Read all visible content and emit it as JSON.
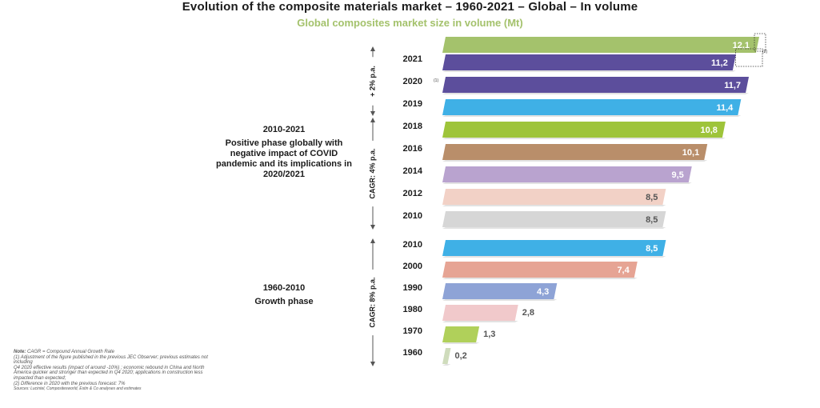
{
  "chart_data": {
    "type": "bar",
    "orientation": "horizontal",
    "title": "Evolution of the composite materials market – 1960-2021 – Global – In volume",
    "subtitle": "Global composites market size in volume (Mt)",
    "unit": "Mt",
    "xlim": [
      0,
      12.1
    ],
    "categories": [
      "2021",
      "2020",
      "2019",
      "2018",
      "2016",
      "2014",
      "2012",
      "2010",
      "2010",
      "2000",
      "1990",
      "1980",
      "1970",
      "1960"
    ],
    "values": [
      11.2,
      11.7,
      11.4,
      10.8,
      10.1,
      9.5,
      8.5,
      8.5,
      8.5,
      7.4,
      4.3,
      2.8,
      1.3,
      0.2
    ],
    "value_labels": [
      "11,2",
      "11,7",
      "11,4",
      "10,8",
      "10,1",
      "9,5",
      "8,5",
      "8,5",
      "8,5",
      "7,4",
      "4,3",
      "2,8",
      "1,3",
      "0,2"
    ],
    "colors": [
      "#5c4e9c",
      "#5c4e9c",
      "#3fb0e6",
      "#9ec43a",
      "#b98e6a",
      "#b9a3cf",
      "#f2d1c6",
      "#d6d6d6",
      "#3fb0e6",
      "#e6a494",
      "#8ea3d6",
      "#f1c9cb",
      "#b0d05a",
      "#cfdcbc"
    ],
    "label_inside": [
      true,
      true,
      true,
      true,
      true,
      true,
      true,
      true,
      true,
      true,
      true,
      false,
      false,
      false
    ],
    "annotations": {
      "forecast_2021": {
        "value": 12.1,
        "label": "12,1",
        "color": "#a4c26c",
        "footnote": "(2)"
      },
      "note_2020": "(1)"
    },
    "cagr_brackets": [
      {
        "label": "+ 2% p.a."
      },
      {
        "label": "CAGR: 4% p.a."
      },
      {
        "label": "CAGR: 8% p.a."
      }
    ]
  },
  "phases": [
    {
      "title": "2010-2021",
      "text": "Positive phase globally with negative impact of COVID pandemic and its implications in 2020/2021"
    },
    {
      "title": "1960-2010",
      "text": "Growth phase"
    }
  ],
  "notes": {
    "label": "Note:",
    "lines": [
      "CAGR = Compound Annual Growth Rate",
      "(1) Adjustment of the figure published in the previous JEC Observer; previous estimates not including",
      "Q4 2020 effective results (impact of around -10%) ; economic rebound in China and North America quicker and stronger than expected in Q4 2020; applications in construction less impacted than expected;",
      "(2) Difference in 2020 with the previous forecast: 7%"
    ],
    "sources": "Sources: Lucintel, Compositesworld, Estin & Co analyses and estimates"
  }
}
